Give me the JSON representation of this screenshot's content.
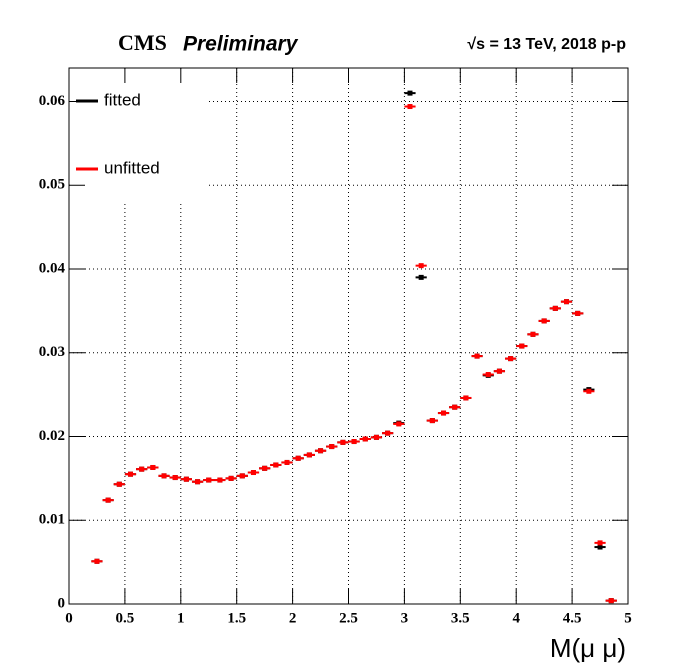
{
  "chart_data": {
    "type": "scatter",
    "title": "CMS",
    "title_suffix": "Preliminary",
    "subtitle": "√s = 13 TeV, 2018 p-p",
    "x_label": "M(μ μ)",
    "bins": [
      0.2,
      0.3,
      0.4,
      0.5,
      0.6,
      0.7,
      0.8,
      0.9,
      1.0,
      1.1,
      1.2,
      1.3,
      1.4,
      1.5,
      1.6,
      1.7,
      1.8,
      1.9,
      2.0,
      2.1,
      2.2,
      2.3,
      2.4,
      2.5,
      2.6,
      2.7,
      2.8,
      2.9,
      3.0,
      3.1,
      3.2,
      3.3,
      3.4,
      3.5,
      3.6,
      3.7,
      3.8,
      3.9,
      4.0,
      4.1,
      4.2,
      4.3,
      4.4,
      4.5,
      4.6,
      4.7,
      4.8,
      4.9
    ],
    "series": [
      {
        "name": "fitted",
        "color": "#000000",
        "values": [
          0.0051,
          0.0124,
          0.0143,
          0.0155,
          0.0161,
          0.0163,
          0.0153,
          0.0151,
          0.0149,
          0.0146,
          0.0148,
          0.0148,
          0.015,
          0.0153,
          0.0157,
          0.0162,
          0.0166,
          0.0169,
          0.0174,
          0.0178,
          0.0183,
          0.0188,
          0.0193,
          0.0194,
          0.0197,
          0.0199,
          0.0204,
          0.0216,
          0.061,
          0.039,
          0.0219,
          0.0228,
          0.0235,
          0.0246,
          0.0296,
          0.0273,
          0.0278,
          0.0293,
          0.0308,
          0.0322,
          0.0338,
          0.0353,
          0.0361,
          0.0347,
          0.0256,
          0.0068,
          0.0004
        ]
      },
      {
        "name": "unfitted",
        "color": "#ff0000",
        "values": [
          0.0051,
          0.0124,
          0.0143,
          0.0155,
          0.0161,
          0.0163,
          0.0153,
          0.0151,
          0.0149,
          0.0146,
          0.0148,
          0.0148,
          0.015,
          0.0153,
          0.0157,
          0.0162,
          0.0166,
          0.0169,
          0.0174,
          0.0178,
          0.0183,
          0.0188,
          0.0193,
          0.0194,
          0.0197,
          0.0199,
          0.0204,
          0.0215,
          0.0594,
          0.0404,
          0.0219,
          0.0228,
          0.0235,
          0.0246,
          0.0296,
          0.0274,
          0.0278,
          0.0293,
          0.0308,
          0.0322,
          0.0338,
          0.0353,
          0.0361,
          0.0347,
          0.0254,
          0.0073,
          0.0004
        ]
      }
    ],
    "xlim": [
      0,
      5
    ],
    "xticks": [
      0,
      0.5,
      1,
      1.5,
      2,
      2.5,
      3,
      3.5,
      4,
      4.5,
      5
    ],
    "ylim": [
      0,
      0.064
    ],
    "yticks": [
      0,
      0.01,
      0.02,
      0.03,
      0.04,
      0.05,
      0.06
    ],
    "grid": true,
    "legend": "upper left"
  }
}
